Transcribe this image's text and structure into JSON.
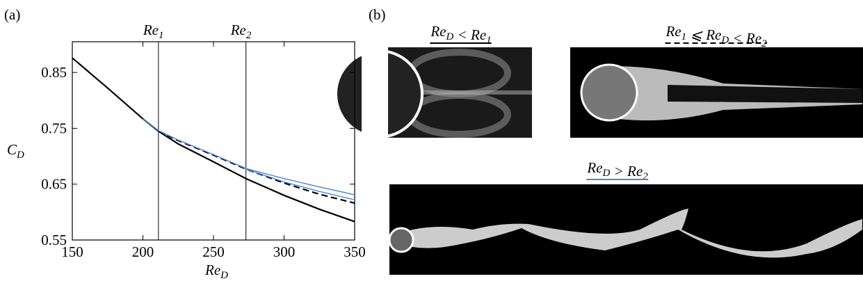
{
  "panels": {
    "a": "(a)",
    "b": "(b)"
  },
  "chart_data": {
    "type": "line",
    "xlabel": {
      "base": "Re",
      "sub": "D"
    },
    "ylabel": {
      "base": "C",
      "sub": "D"
    },
    "xlim": [
      150,
      350
    ],
    "xticks": [
      150,
      200,
      250,
      300,
      350
    ],
    "ylim": [
      0.55,
      0.905
    ],
    "yticks": [
      0.55,
      0.65,
      0.75,
      0.85
    ],
    "vlines": [
      {
        "x": 211,
        "label": {
          "base": "Re",
          "sub": "1"
        }
      },
      {
        "x": 273,
        "label": {
          "base": "Re",
          "sub": "2"
        }
      }
    ],
    "series": [
      {
        "color": "#000000",
        "dash": "solid",
        "x": [
          150,
          175,
          200,
          211,
          225,
          250,
          273,
          300,
          325,
          350
        ],
        "values": [
          0.876,
          0.822,
          0.767,
          0.745,
          0.722,
          0.69,
          0.66,
          0.63,
          0.605,
          0.583
        ]
      },
      {
        "color": "#000000",
        "dash": "dashed",
        "x": [
          211,
          225,
          250,
          273,
          300,
          325,
          350
        ],
        "values": [
          0.745,
          0.728,
          0.702,
          0.677,
          0.652,
          0.632,
          0.616
        ]
      },
      {
        "color": "#4a86d8",
        "dash": "solid",
        "x": [
          200,
          211,
          225,
          250,
          273,
          300,
          325,
          350
        ],
        "values": [
          0.767,
          0.746,
          0.729,
          0.703,
          0.678,
          0.66,
          0.645,
          0.631
        ]
      },
      {
        "color": "#4a86d8",
        "dash": "solid",
        "x": [
          273,
          300,
          325,
          350
        ],
        "values": [
          0.677,
          0.654,
          0.637,
          0.622
        ]
      }
    ]
  },
  "images": [
    {
      "caption": [
        {
          "base": "Re",
          "sub": "D"
        },
        {
          "base": " < Re",
          "sub": "1"
        }
      ],
      "underline": "solid",
      "color": "#000000"
    },
    {
      "caption": [
        {
          "base": "Re",
          "sub": "1"
        },
        {
          "base": " ⩽ Re",
          "sub": "D"
        },
        {
          "base": " < Re",
          "sub": "2"
        }
      ],
      "underline": "dashed",
      "color": "#000000"
    },
    {
      "caption": [
        {
          "base": "Re",
          "sub": "D"
        },
        {
          "base": " > Re",
          "sub": "2"
        }
      ],
      "underline": "solid",
      "color": "#4a86d8"
    }
  ]
}
